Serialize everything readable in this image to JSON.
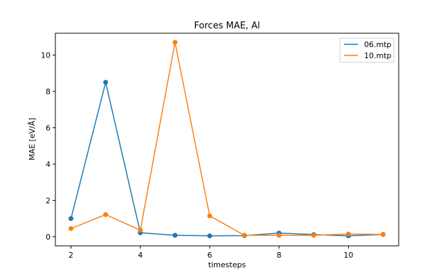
{
  "chart_data": {
    "type": "line",
    "title": "Forces MAE, Al",
    "xlabel": "timesteps",
    "ylabel": "MAE [eV/Å]",
    "x": [
      2,
      3,
      4,
      5,
      6,
      7,
      8,
      9,
      10,
      11
    ],
    "xlim": [
      1.55,
      11.45
    ],
    "ylim": [
      -0.5,
      11.2
    ],
    "xticks": [
      2,
      4,
      6,
      8,
      10
    ],
    "yticks": [
      0,
      2,
      4,
      6,
      8,
      10
    ],
    "grid": false,
    "legend": "top-right",
    "series": [
      {
        "name": "06.mtp",
        "color": "#1f77b4",
        "values": [
          1.0,
          8.5,
          0.22,
          0.08,
          0.05,
          0.06,
          0.2,
          0.12,
          0.05,
          0.13
        ]
      },
      {
        "name": "10.mtp",
        "color": "#ff7f0e",
        "values": [
          0.45,
          1.22,
          0.36,
          10.7,
          1.15,
          0.08,
          0.08,
          0.08,
          0.15,
          0.13
        ]
      }
    ]
  }
}
